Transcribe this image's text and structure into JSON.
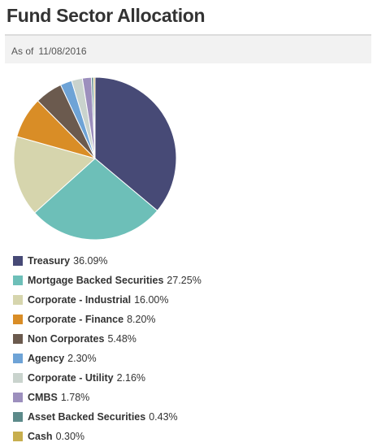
{
  "header": {
    "title": "Fund Sector Allocation",
    "as_of_label": "As of",
    "as_of_date": "11/08/2016"
  },
  "chart_data": {
    "type": "pie",
    "title": "Fund Sector Allocation",
    "legend_position": "bottom",
    "slices": [
      {
        "name": "Treasury",
        "value": 36.09,
        "label": "36.09%",
        "color": "#474a76"
      },
      {
        "name": "Mortgage Backed Securities",
        "value": 27.25,
        "label": "27.25%",
        "color": "#6dbfb8"
      },
      {
        "name": "Corporate - Industrial",
        "value": 16.0,
        "label": "16.00%",
        "color": "#d6d5ad"
      },
      {
        "name": "Corporate - Finance",
        "value": 8.2,
        "label": "8.20%",
        "color": "#d98d26"
      },
      {
        "name": "Non Corporates",
        "value": 5.48,
        "label": "5.48%",
        "color": "#6b5a4e"
      },
      {
        "name": "Agency",
        "value": 2.3,
        "label": "2.30%",
        "color": "#6ea3d6"
      },
      {
        "name": "Corporate - Utility",
        "value": 2.16,
        "label": "2.16%",
        "color": "#c9d3cd"
      },
      {
        "name": "CMBS",
        "value": 1.78,
        "label": "1.78%",
        "color": "#9c8fbd"
      },
      {
        "name": "Asset Backed Securities",
        "value": 0.43,
        "label": "0.43%",
        "color": "#5c8a8a"
      },
      {
        "name": "Cash",
        "value": 0.3,
        "label": "0.30%",
        "color": "#c7ae4e"
      }
    ]
  }
}
